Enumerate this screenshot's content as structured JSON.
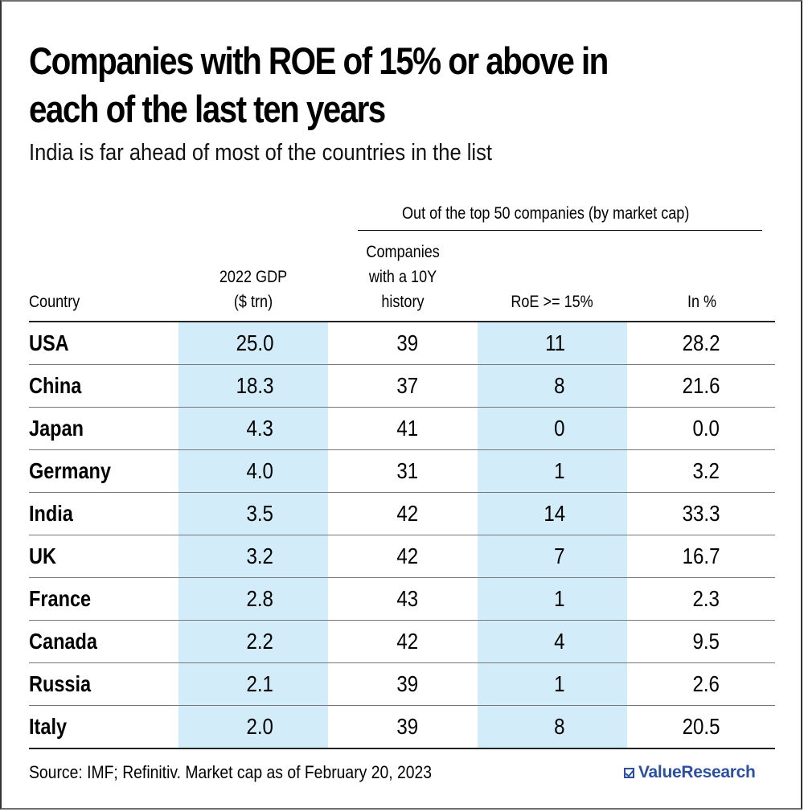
{
  "title": "Companies with ROE of 15% or above in each of the last ten years",
  "title_line1": "Companies with ROE of 15% or above in",
  "title_line2": "each of the last ten years",
  "subtitle": "India is far ahead of most of the countries in the list",
  "group_header": "Out of the top 50 companies (by market cap)",
  "columns": {
    "country": [
      "Country"
    ],
    "gdp": [
      "2022 GDP",
      "($ trn)"
    ],
    "history": [
      "Companies",
      "with a 10Y",
      "history"
    ],
    "roe": [
      "RoE >= 15%"
    ],
    "pct": [
      "In %"
    ]
  },
  "footer": {
    "source": "Source: IMF; Refinitiv. Market cap as of February 20, 2023",
    "brand": "ValueResearch",
    "brand_color": "#2d4fa0"
  },
  "highlight_color": "#d2ecf9",
  "chart_data": {
    "type": "table",
    "title": "Companies with ROE of 15% or above in each of the last ten years",
    "subtitle": "India is far ahead of most of the countries in the list",
    "headers": [
      "Country",
      "2022 GDP ($ trn)",
      "Companies with a 10Y history",
      "RoE >= 15%",
      "In %"
    ],
    "rows": [
      {
        "country": "USA",
        "gdp": "25.0",
        "history": "39",
        "roe": "11",
        "pct": "28.2"
      },
      {
        "country": "China",
        "gdp": "18.3",
        "history": "37",
        "roe": "8",
        "pct": "21.6"
      },
      {
        "country": "Japan",
        "gdp": "4.3",
        "history": "41",
        "roe": "0",
        "pct": "0.0"
      },
      {
        "country": "Germany",
        "gdp": "4.0",
        "history": "31",
        "roe": "1",
        "pct": "3.2"
      },
      {
        "country": "India",
        "gdp": "3.5",
        "history": "42",
        "roe": "14",
        "pct": "33.3"
      },
      {
        "country": "UK",
        "gdp": "3.2",
        "history": "42",
        "roe": "7",
        "pct": "16.7"
      },
      {
        "country": "France",
        "gdp": "2.8",
        "history": "43",
        "roe": "1",
        "pct": "2.3"
      },
      {
        "country": "Canada",
        "gdp": "2.2",
        "history": "42",
        "roe": "4",
        "pct": "9.5"
      },
      {
        "country": "Russia",
        "gdp": "2.1",
        "history": "39",
        "roe": "1",
        "pct": "2.6"
      },
      {
        "country": "Italy",
        "gdp": "2.0",
        "history": "39",
        "roe": "8",
        "pct": "20.5"
      }
    ],
    "source": "Source: IMF; Refinitiv. Market cap as of February 20, 2023"
  }
}
